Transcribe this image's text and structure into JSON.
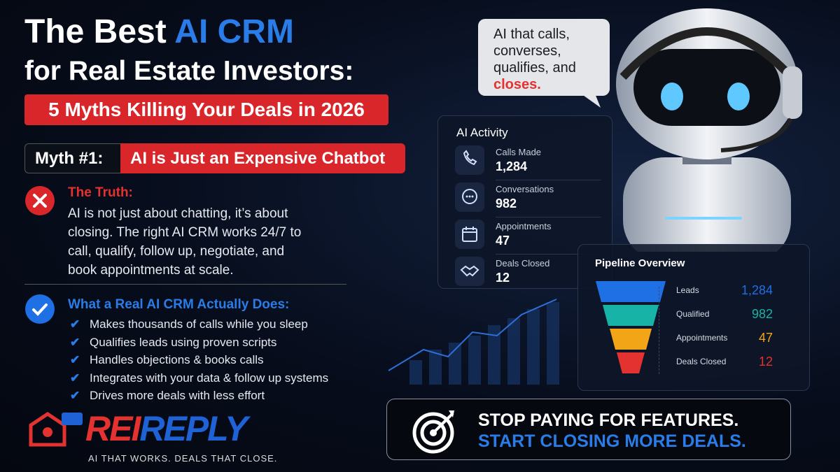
{
  "header": {
    "title_pre": "The Best",
    "title_highlight": "AI CRM",
    "title_line2": "for Real Estate Investors:",
    "subtitle": "5 Myths Killing Your Deals in 2026"
  },
  "myth": {
    "label": "Myth #1:",
    "text": "AI is Just an Expensive Chatbot"
  },
  "truth": {
    "heading": "The Truth:",
    "body": "AI is not just about chatting, it’s about closing. The right AI CRM works 24/7 to call, qualify, follow up, negotiate, and book appointments at scale."
  },
  "does": {
    "heading": "What a Real AI CRM Actually Does:",
    "items": [
      "Makes thousands of calls while you sleep",
      "Qualifies leads using proven scripts",
      "Handles objections & books calls",
      "Integrates with your data & follow up systems",
      "Drives more deals with less effort"
    ]
  },
  "logo": {
    "rei": "REI",
    "reply": "REPLY",
    "tagline": "AI THAT WORKS. DEALS THAT CLOSE."
  },
  "speech": {
    "text": "AI that calls, converses, qualifies, and",
    "highlight": "closes."
  },
  "activity": {
    "title": "AI Activity",
    "items": [
      {
        "label": "Calls Made",
        "value": "1,284"
      },
      {
        "label": "Conversations",
        "value": "982"
      },
      {
        "label": "Appointments",
        "value": "47"
      },
      {
        "label": "Deals Closed",
        "value": "12"
      }
    ]
  },
  "pipeline": {
    "title": "Pipeline Overview",
    "stages": [
      {
        "label": "Leads",
        "value": "1,284",
        "color": "#1f6fe5"
      },
      {
        "label": "Qualified",
        "value": "982",
        "color": "#17b3a6"
      },
      {
        "label": "Appointments",
        "value": "47",
        "color": "#f2a516"
      },
      {
        "label": "Deals Closed",
        "value": "12",
        "color": "#e3322f"
      }
    ]
  },
  "cta": {
    "line1": "STOP PAYING FOR FEATURES.",
    "line2": "START CLOSING MORE DEALS."
  }
}
